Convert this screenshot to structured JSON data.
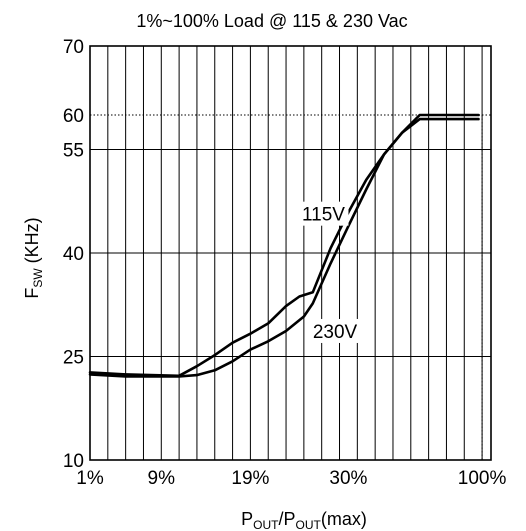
{
  "chart_data": {
    "type": "line",
    "title": "1%~100% Load @ 115 & 230 Vac",
    "ylabel": {
      "main": "F",
      "sub": "SW",
      "unit": " (KHz)"
    },
    "xlabel": {
      "p1": "P",
      "s1": "OUT",
      "slash": "/",
      "p2": "P",
      "s2": "OUT",
      "tail": "(max)"
    },
    "x_ticks": [
      "1%",
      "9%",
      "19%",
      "30%",
      "100%"
    ],
    "x_tick_positions": [
      1,
      9,
      19,
      30,
      45
    ],
    "y_ticks": [
      "10",
      "25",
      "40",
      "55",
      "60",
      "70"
    ],
    "y_tick_values": [
      10,
      25,
      40,
      55,
      60,
      70
    ],
    "xlim": [
      1,
      46
    ],
    "ylim": [
      10,
      70
    ],
    "grid": true,
    "reference_lines": {
      "y": 60,
      "x": 45,
      "style": "dotted"
    },
    "series": [
      {
        "name": "115V",
        "x": [
          1,
          5,
          11,
          13,
          15,
          17,
          19,
          21,
          23,
          24.5,
          26,
          28,
          30,
          32,
          34,
          36,
          38,
          39.5,
          41,
          43,
          44.6
        ],
        "y": [
          22.7,
          22.4,
          22.2,
          23.6,
          25.2,
          27,
          28.3,
          29.8,
          32.3,
          33.7,
          34.3,
          40.7,
          45.9,
          50.6,
          54.3,
          57.4,
          60,
          60,
          60,
          60,
          60
        ]
      },
      {
        "name": "230V",
        "x": [
          1,
          5,
          11,
          13,
          15,
          17,
          19,
          21,
          23,
          25,
          26,
          28,
          30,
          32,
          34,
          36,
          38,
          39.5,
          41,
          43,
          44.6
        ],
        "y": [
          22.4,
          22.1,
          22.1,
          22.3,
          23,
          24.3,
          26,
          27.2,
          28.7,
          30.8,
          32.7,
          38.5,
          43.9,
          49.2,
          54.3,
          57.4,
          59.4,
          59.4,
          59.4,
          59.4,
          59.4
        ]
      }
    ],
    "annotations": [
      "115V",
      "230V"
    ]
  }
}
